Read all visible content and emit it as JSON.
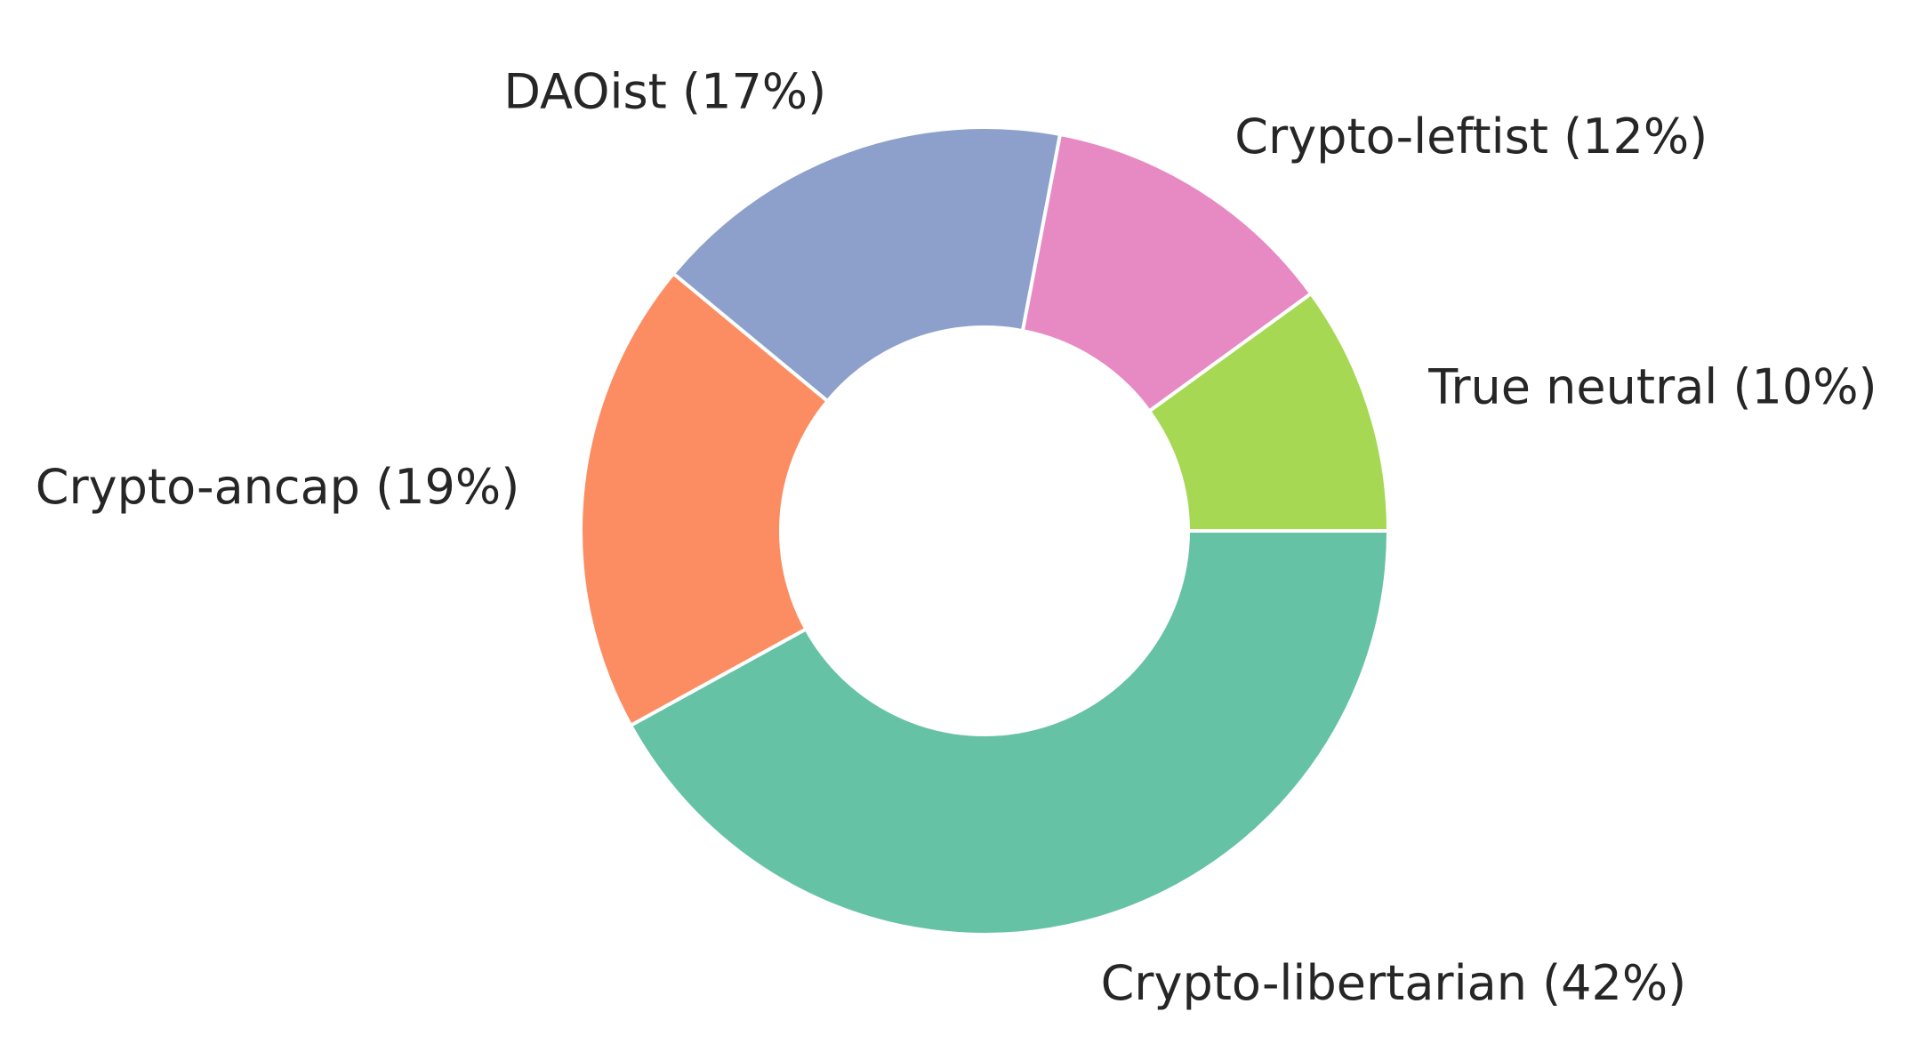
{
  "chart_data": {
    "type": "pie",
    "donut": true,
    "start_angle_deg": 0,
    "direction": "clockwise",
    "slices": [
      {
        "label": "Crypto-libertarian (42%)",
        "value": 42,
        "color": "#66c2a5",
        "label_anchor": "start"
      },
      {
        "label": "Crypto-ancap (19%)",
        "value": 19,
        "color": "#fc8d62",
        "label_anchor": "end"
      },
      {
        "label": "DAOist (17%)",
        "value": 17,
        "color": "#8da0cb",
        "label_anchor": "end"
      },
      {
        "label": "Crypto-leftist (12%)",
        "value": 12,
        "color": "#e78ac3",
        "label_anchor": "start"
      },
      {
        "label": "True neutral (10%)",
        "value": 10,
        "color": "#a6d854",
        "label_anchor": "start"
      }
    ],
    "edge_color": "#ffffff",
    "legend": "none"
  }
}
